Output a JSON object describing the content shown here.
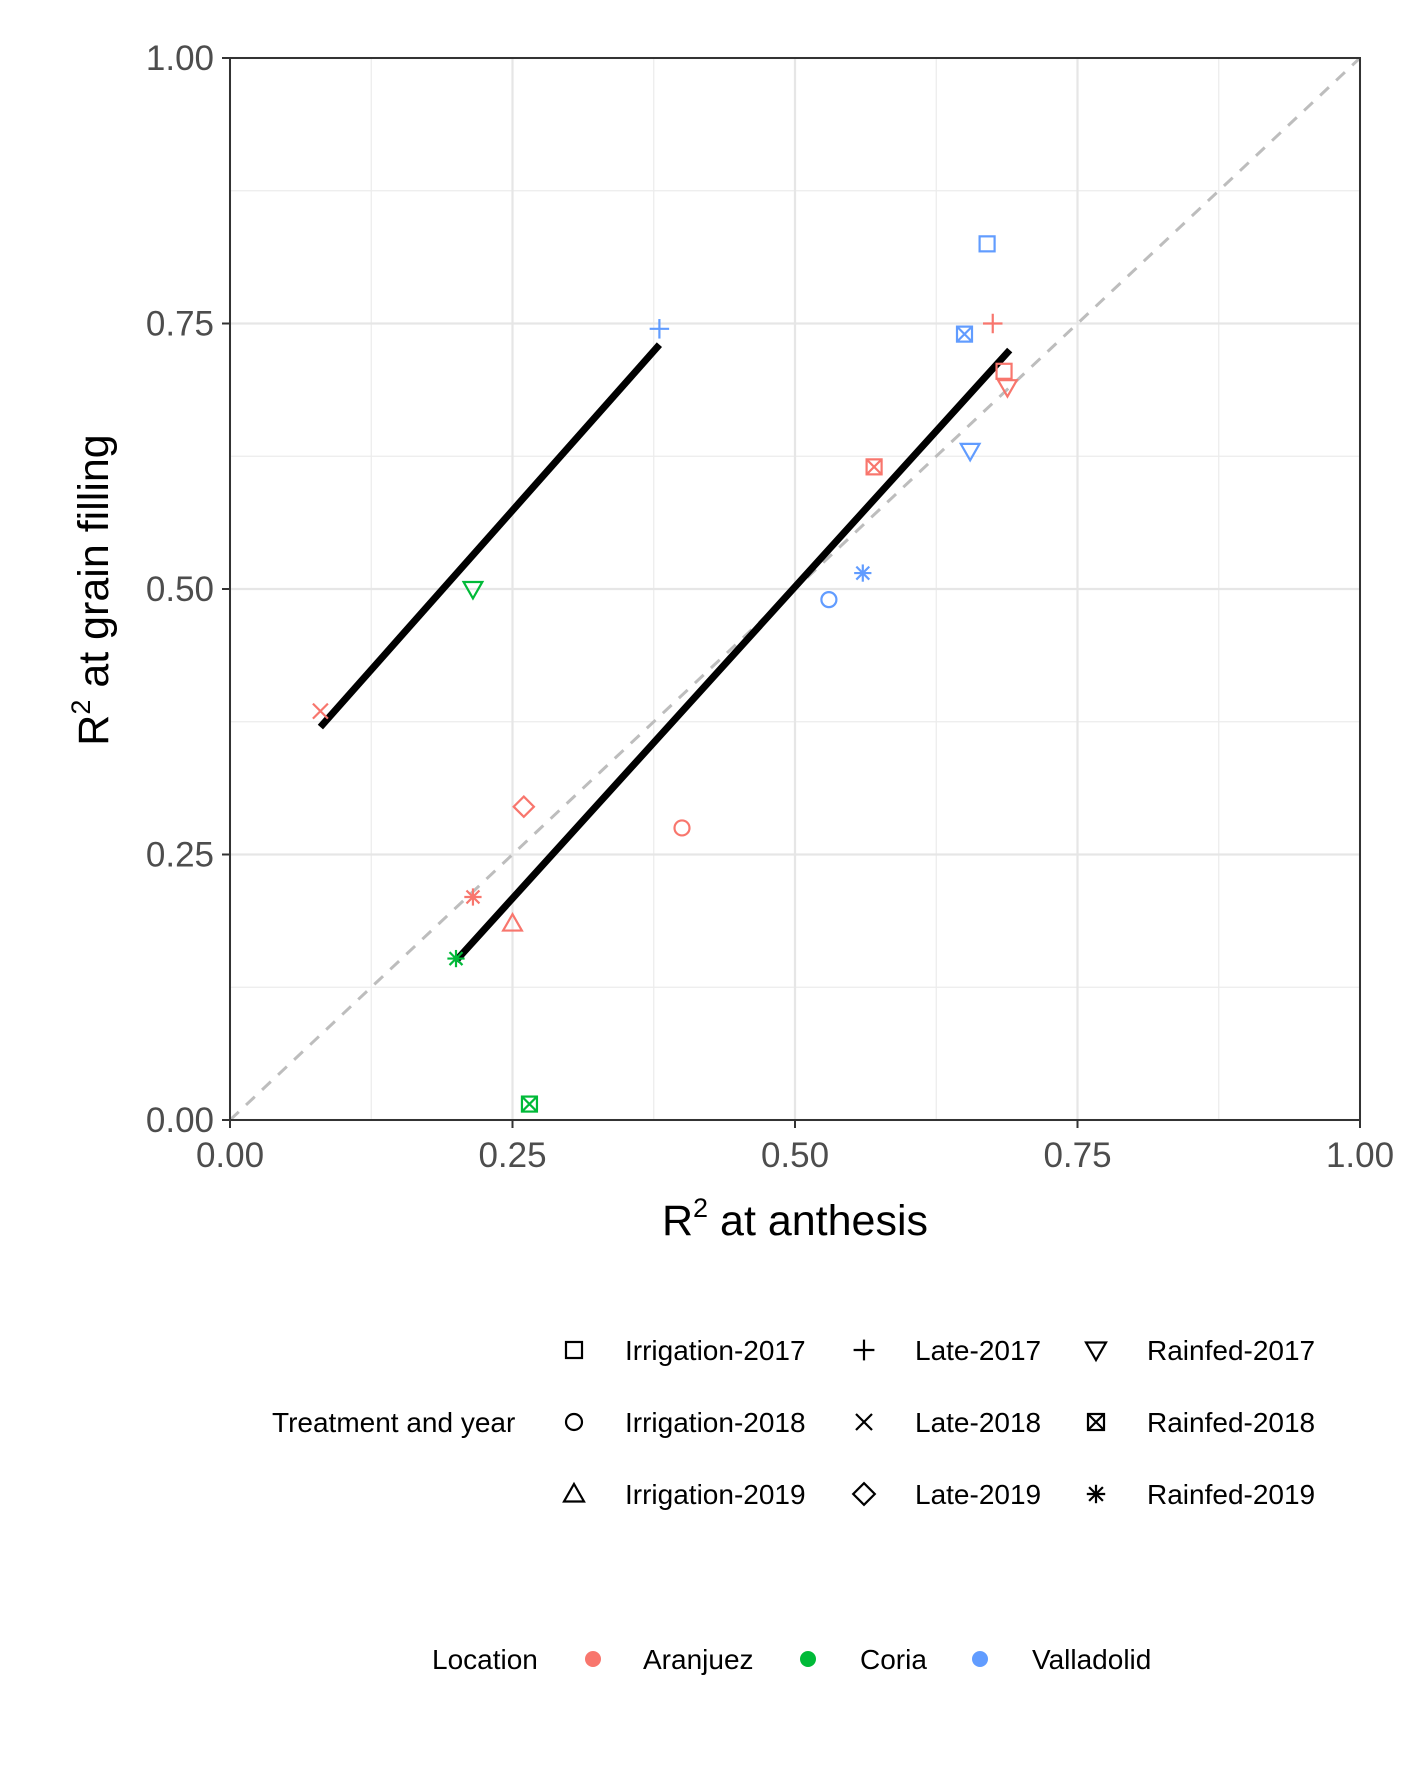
{
  "chart_data": {
    "type": "scatter",
    "xlabel": {
      "base": "R",
      "sup": "2",
      "rest": " at anthesis"
    },
    "ylabel": {
      "base": "R",
      "sup": "2",
      "rest": " at grain filling"
    },
    "xlim": [
      0,
      1
    ],
    "ylim": [
      0,
      1
    ],
    "xticks": [
      "0.00",
      "0.25",
      "0.50",
      "0.75",
      "1.00"
    ],
    "yticks": [
      "0.00",
      "0.25",
      "0.50",
      "0.75",
      "1.00"
    ],
    "grid": true,
    "reference_line": {
      "slope": 1,
      "intercept": 0,
      "style": "dashed",
      "color": "#bdbdbd"
    },
    "fit_lines": [
      {
        "x": [
          0.08,
          0.38
        ],
        "y": [
          0.37,
          0.73
        ]
      },
      {
        "x": [
          0.2,
          0.69
        ],
        "y": [
          0.15,
          0.725
        ]
      }
    ],
    "points": [
      {
        "x": 0.67,
        "y": 0.825,
        "treatment": "Irrigation-2017",
        "location": "Valladolid"
      },
      {
        "x": 0.685,
        "y": 0.705,
        "treatment": "Irrigation-2017",
        "location": "Aranjuez"
      },
      {
        "x": 0.38,
        "y": 0.745,
        "treatment": "Late-2017",
        "location": "Valladolid"
      },
      {
        "x": 0.675,
        "y": 0.75,
        "treatment": "Late-2017",
        "location": "Aranjuez"
      },
      {
        "x": 0.65,
        "y": 0.74,
        "treatment": "Rainfed-2018",
        "location": "Valladolid"
      },
      {
        "x": 0.688,
        "y": 0.69,
        "treatment": "Rainfed-2017",
        "location": "Aranjuez"
      },
      {
        "x": 0.57,
        "y": 0.615,
        "treatment": "Rainfed-2018",
        "location": "Aranjuez"
      },
      {
        "x": 0.655,
        "y": 0.63,
        "treatment": "Rainfed-2017",
        "location": "Valladolid"
      },
      {
        "x": 0.215,
        "y": 0.5,
        "treatment": "Rainfed-2017",
        "location": "Coria"
      },
      {
        "x": 0.53,
        "y": 0.49,
        "treatment": "Irrigation-2018",
        "location": "Valladolid"
      },
      {
        "x": 0.56,
        "y": 0.515,
        "treatment": "Rainfed-2019",
        "location": "Valladolid"
      },
      {
        "x": 0.08,
        "y": 0.385,
        "treatment": "Late-2018",
        "location": "Aranjuez"
      },
      {
        "x": 0.26,
        "y": 0.295,
        "treatment": "Late-2019",
        "location": "Aranjuez"
      },
      {
        "x": 0.4,
        "y": 0.275,
        "treatment": "Irrigation-2018",
        "location": "Aranjuez"
      },
      {
        "x": 0.215,
        "y": 0.21,
        "treatment": "Rainfed-2019",
        "location": "Aranjuez"
      },
      {
        "x": 0.25,
        "y": 0.185,
        "treatment": "Irrigation-2019",
        "location": "Aranjuez"
      },
      {
        "x": 0.2,
        "y": 0.152,
        "treatment": "Rainfed-2019",
        "location": "Coria"
      },
      {
        "x": 0.265,
        "y": 0.015,
        "treatment": "Rainfed-2018",
        "location": "Coria"
      }
    ],
    "legend_shape": {
      "title": "Treatment and year",
      "placement": "bottom",
      "rows": [
        [
          {
            "label": "Irrigation-2017",
            "shape": "square"
          },
          {
            "label": "Late-2017",
            "shape": "plus"
          },
          {
            "label": "Rainfed-2017",
            "shape": "triangle-down"
          }
        ],
        [
          {
            "label": "Irrigation-2018",
            "shape": "circle"
          },
          {
            "label": "Late-2018",
            "shape": "cross"
          },
          {
            "label": "Rainfed-2018",
            "shape": "square-cross"
          }
        ],
        [
          {
            "label": "Irrigation-2019",
            "shape": "triangle-up"
          },
          {
            "label": "Late-2019",
            "shape": "diamond"
          },
          {
            "label": "Rainfed-2019",
            "shape": "asterisk"
          }
        ]
      ]
    },
    "legend_color": {
      "title": "Location",
      "placement": "bottom",
      "items": [
        {
          "label": "Aranjuez",
          "color": "#f8766d"
        },
        {
          "label": "Coria",
          "color": "#00ba38"
        },
        {
          "label": "Valladolid",
          "color": "#619cff"
        }
      ]
    },
    "shape_map": {
      "Irrigation-2017": "square",
      "Late-2017": "plus",
      "Rainfed-2017": "triangle-down",
      "Irrigation-2018": "circle",
      "Late-2018": "cross",
      "Rainfed-2018": "square-cross",
      "Irrigation-2019": "triangle-up",
      "Late-2019": "diamond",
      "Rainfed-2019": "asterisk"
    }
  }
}
